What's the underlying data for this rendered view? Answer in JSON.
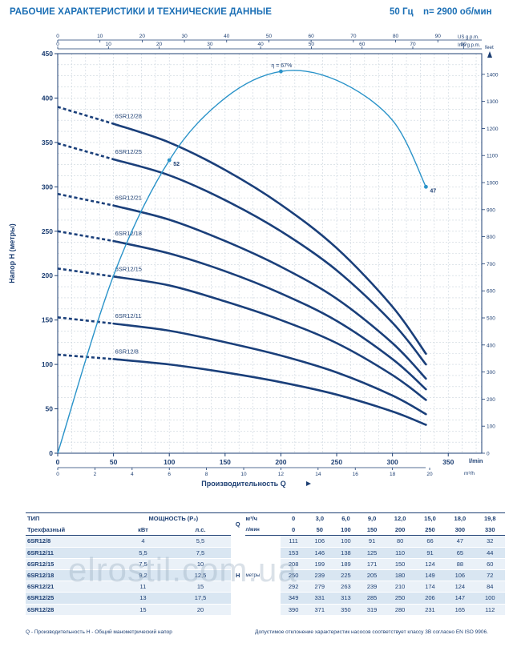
{
  "header": {
    "title": "РАБОЧИЕ ХАРАКТЕРИСТИКИ И ТЕХНИЧЕСКИЕ ДАННЫЕ",
    "freq": "50 Гц",
    "speed": "n= 2900 об/мин"
  },
  "colors": {
    "curve": "#1a3f7a",
    "efficiency": "#2a93c9",
    "grid": "#c9d3dc",
    "axis": "#1d3f73"
  },
  "chart_data": {
    "type": "line",
    "ylabel": "Напор H (метры)",
    "xlabel": "Производительность Q",
    "x_unit_bottom": "l/min",
    "x_unit_m3h": "m³/h",
    "x_unit_us": "US g.p.m.",
    "x_unit_imp": "Imp g.p.m.",
    "y2_unit": "feet",
    "xlim": [
      0,
      380
    ],
    "ylim": [
      0,
      450
    ],
    "x_ticks": [
      0,
      50,
      100,
      150,
      200,
      250,
      300,
      350
    ],
    "y_ticks": [
      0,
      50,
      100,
      150,
      200,
      250,
      300,
      350,
      400,
      450
    ],
    "m3h_ticks": [
      0,
      2,
      4,
      6,
      8,
      10,
      12,
      14,
      16,
      18,
      20
    ],
    "us_ticks": [
      0,
      10,
      20,
      30,
      40,
      50,
      60,
      70,
      80,
      90
    ],
    "imp_ticks": [
      0,
      10,
      20,
      30,
      40,
      50,
      60,
      70,
      80
    ],
    "feet_ticks": [
      0,
      100,
      200,
      300,
      400,
      500,
      600,
      700,
      800,
      900,
      1000,
      1100,
      1200,
      1300,
      1400
    ],
    "x": [
      0,
      50,
      100,
      150,
      200,
      250,
      300,
      330
    ],
    "dashed_until": 50,
    "series": [
      {
        "name": "6SR12/8",
        "values": [
          111,
          106,
          100,
          91,
          80,
          66,
          47,
          32
        ]
      },
      {
        "name": "6SR12/11",
        "values": [
          153,
          146,
          138,
          125,
          110,
          91,
          65,
          44
        ]
      },
      {
        "name": "6SR12/15",
        "values": [
          208,
          199,
          189,
          171,
          150,
          124,
          88,
          60
        ]
      },
      {
        "name": "6SR12/18",
        "values": [
          250,
          239,
          225,
          205,
          180,
          149,
          106,
          72
        ]
      },
      {
        "name": "6SR12/21",
        "values": [
          292,
          279,
          263,
          239,
          210,
          174,
          124,
          84
        ]
      },
      {
        "name": "6SR12/25",
        "values": [
          349,
          331,
          313,
          285,
          250,
          206,
          147,
          100
        ]
      },
      {
        "name": "6SR12/28",
        "values": [
          390,
          371,
          350,
          319,
          280,
          231,
          165,
          112
        ]
      }
    ],
    "efficiency": {
      "label": "η = 67%",
      "points": [
        [
          0,
          0
        ],
        [
          50,
          200
        ],
        [
          100,
          330
        ],
        [
          150,
          400
        ],
        [
          200,
          430
        ],
        [
          250,
          420
        ],
        [
          300,
          375
        ],
        [
          330,
          300
        ]
      ],
      "markers": [
        {
          "x": 100,
          "y": 330,
          "label": "52"
        },
        {
          "x": 200,
          "y": 430,
          "label": ""
        },
        {
          "x": 330,
          "y": 300,
          "label": "47"
        }
      ]
    }
  },
  "table": {
    "h_type": "ТИП",
    "h_power": "МОЩНОСТЬ (P₂)",
    "h_q": "Q",
    "h_q_unit1": "м³/ч",
    "h_q_unit2": "л/мин",
    "h_phase": "Трехфазный",
    "h_kw": "кВт",
    "h_hp": "л.с.",
    "q_m3h": [
      "0",
      "3,0",
      "6,0",
      "9,0",
      "12,0",
      "15,0",
      "18,0",
      "19,8"
    ],
    "q_lmin": [
      "0",
      "50",
      "100",
      "150",
      "200",
      "250",
      "300",
      "330"
    ],
    "h_label": "H",
    "h_unit": "метры",
    "rows": [
      {
        "model": "6SR12/8",
        "kw": "4",
        "hp": "5,5",
        "h": [
          "111",
          "106",
          "100",
          "91",
          "80",
          "66",
          "47",
          "32"
        ]
      },
      {
        "model": "6SR12/11",
        "kw": "5,5",
        "hp": "7,5",
        "h": [
          "153",
          "146",
          "138",
          "125",
          "110",
          "91",
          "65",
          "44"
        ]
      },
      {
        "model": "6SR12/15",
        "kw": "7,5",
        "hp": "10",
        "h": [
          "208",
          "199",
          "189",
          "171",
          "150",
          "124",
          "88",
          "60"
        ]
      },
      {
        "model": "6SR12/18",
        "kw": "9,2",
        "hp": "12,5",
        "h": [
          "250",
          "239",
          "225",
          "205",
          "180",
          "149",
          "106",
          "72"
        ]
      },
      {
        "model": "6SR12/21",
        "kw": "11",
        "hp": "15",
        "h": [
          "292",
          "279",
          "263",
          "239",
          "210",
          "174",
          "124",
          "84"
        ]
      },
      {
        "model": "6SR12/25",
        "kw": "13",
        "hp": "17,5",
        "h": [
          "349",
          "331",
          "313",
          "285",
          "250",
          "206",
          "147",
          "100"
        ]
      },
      {
        "model": "6SR12/28",
        "kw": "15",
        "hp": "20",
        "h": [
          "390",
          "371",
          "350",
          "319",
          "280",
          "231",
          "165",
          "112"
        ]
      }
    ]
  },
  "footer": {
    "left": "Q - Производительность   H - Общий манометрический напор",
    "right": "Допустимое отклонение характеристик насосов соответствует классу 3В согласно EN ISO 9906."
  },
  "watermark": "elrostil.com.ua"
}
